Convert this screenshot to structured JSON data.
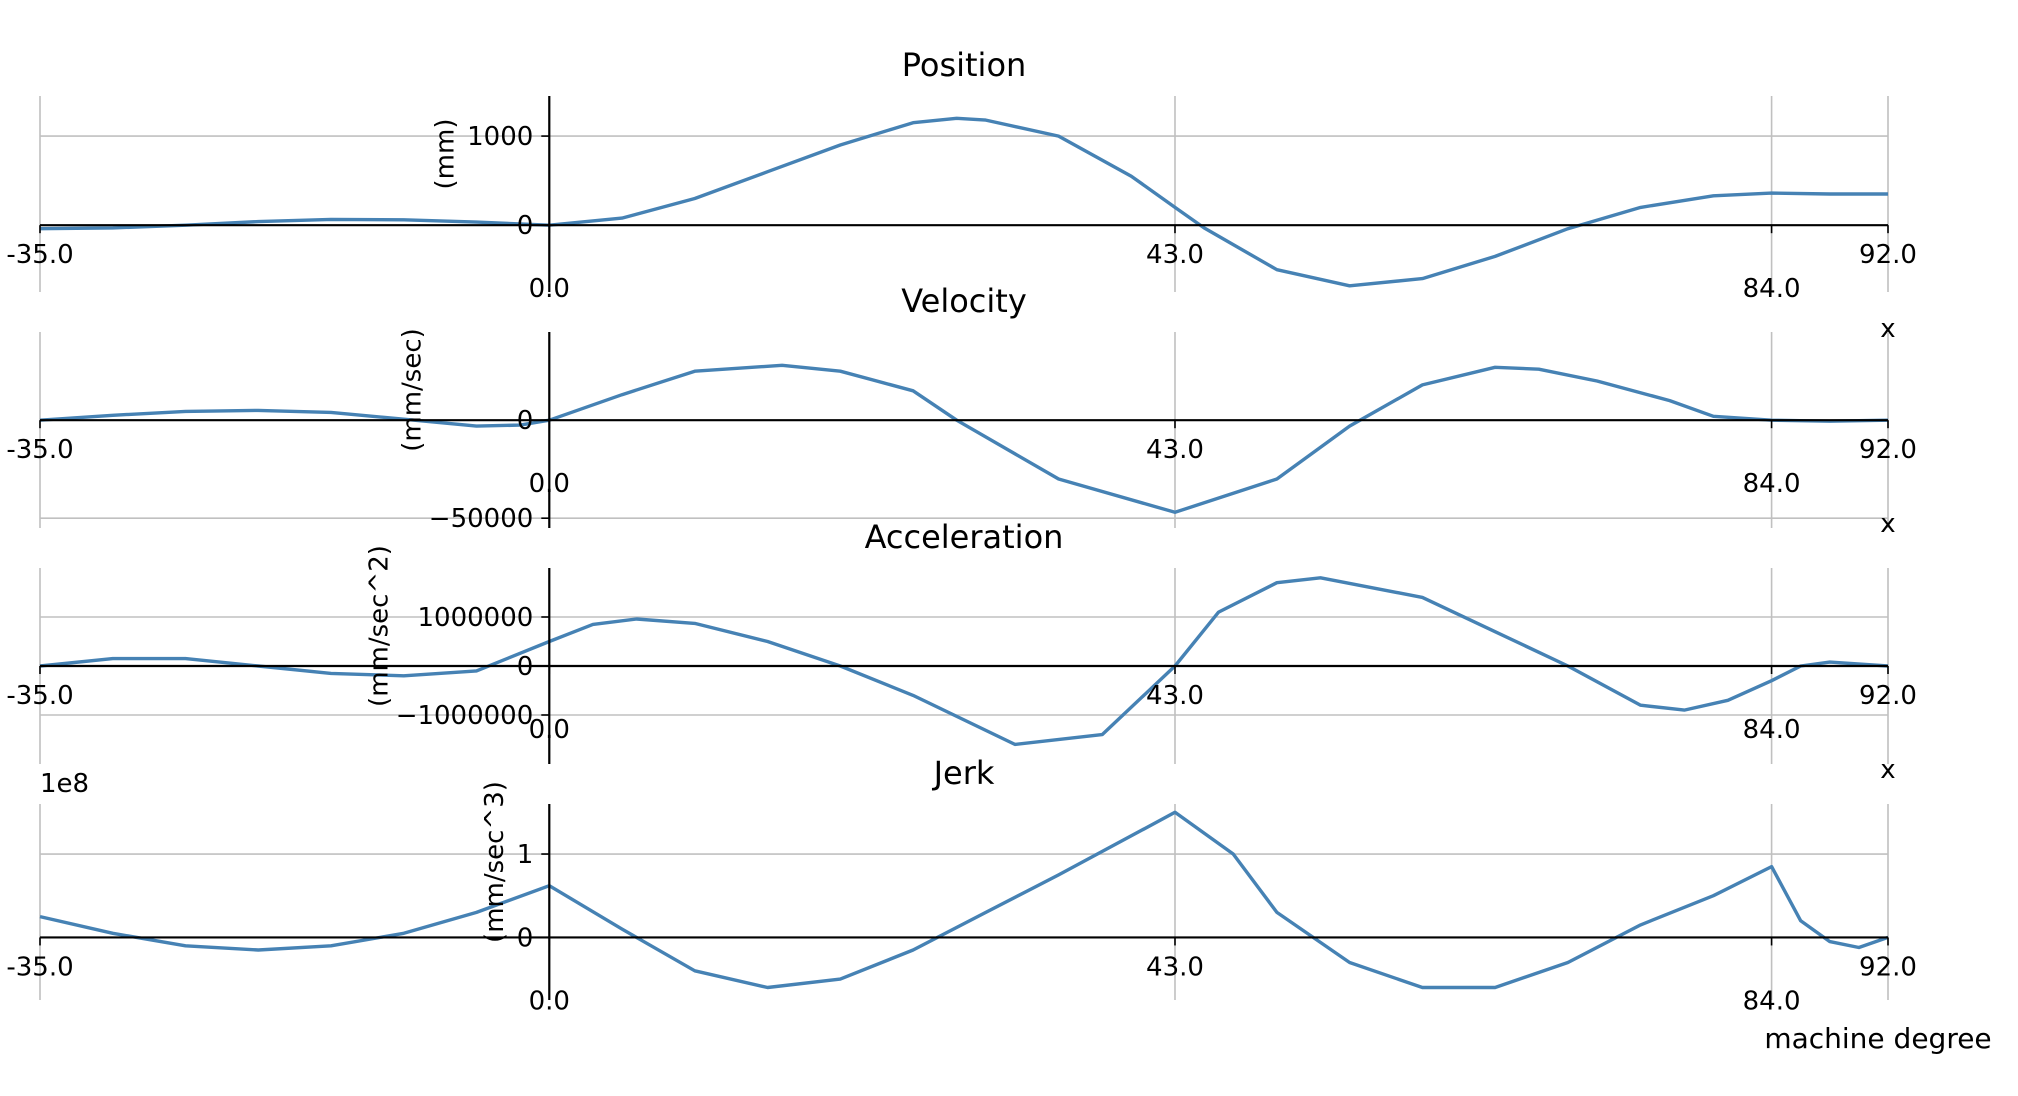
{
  "figure": {
    "xlabel": "machine degree",
    "axis_letter": "x"
  },
  "chart_data": [
    {
      "type": "line",
      "title": "Position",
      "ylabel": "(mm)",
      "xlim": [
        -35,
        92
      ],
      "ylim": [
        -750,
        1450
      ],
      "yticks": [
        0,
        1000
      ],
      "ytick_labels": [
        "0",
        "1000"
      ],
      "xticks_top": [
        -35,
        43,
        92
      ],
      "xticks_top_labels": [
        "-35.0",
        "43.0",
        "92.0"
      ],
      "xticks_bottom": [
        0,
        84
      ],
      "xticks_bottom_labels": [
        "0.0",
        "84.0"
      ],
      "show_x_letter": true,
      "multiplier": "",
      "grid": true,
      "color": "#4682b4",
      "series": [
        {
          "x": [
            -35,
            -30,
            -25,
            -20,
            -15,
            -10,
            -5,
            0,
            5,
            10,
            15,
            20,
            25,
            28,
            30,
            35,
            40,
            43,
            45,
            50,
            55,
            60,
            65,
            70,
            75,
            80,
            84,
            88,
            92
          ],
          "y": [
            -40,
            -30,
            0,
            40,
            65,
            60,
            35,
            0,
            80,
            300,
            600,
            900,
            1150,
            1200,
            1180,
            1000,
            550,
            200,
            -30,
            -500,
            -680,
            -600,
            -350,
            -40,
            200,
            330,
            360,
            350,
            350
          ]
        }
      ]
    },
    {
      "type": "line",
      "title": "Velocity",
      "ylabel": "(mm/sec)",
      "xlim": [
        -35,
        92
      ],
      "ylim": [
        -55000,
        45000
      ],
      "yticks": [
        -50000,
        0
      ],
      "ytick_labels": [
        "−50000",
        "0"
      ],
      "xticks_top": [
        -35,
        43,
        92
      ],
      "xticks_top_labels": [
        "-35.0",
        "43.0",
        "92.0"
      ],
      "xticks_bottom": [
        0,
        84
      ],
      "xticks_bottom_labels": [
        "0.0",
        "84.0"
      ],
      "show_x_letter": true,
      "multiplier": "",
      "grid": true,
      "color": "#4682b4",
      "series": [
        {
          "x": [
            -35,
            -30,
            -25,
            -20,
            -15,
            -10,
            -5,
            -2,
            0,
            5,
            10,
            16,
            20,
            25,
            28,
            35,
            43,
            50,
            55,
            60,
            65,
            68,
            72,
            77,
            80,
            84,
            88,
            92
          ],
          "y": [
            0,
            2500,
            4500,
            5000,
            4000,
            500,
            -3000,
            -2500,
            0,
            13000,
            25000,
            28000,
            25000,
            15000,
            0,
            -30000,
            -47000,
            -30000,
            -3000,
            18000,
            27000,
            26000,
            20000,
            10000,
            2000,
            0,
            -500,
            0
          ]
        }
      ]
    },
    {
      "type": "line",
      "title": "Acceleration",
      "ylabel": "(mm/sec^2)",
      "xlim": [
        -35,
        92
      ],
      "ylim": [
        -2000000,
        2000000
      ],
      "yticks": [
        -1000000,
        0,
        1000000
      ],
      "ytick_labels": [
        "−1000000",
        "0",
        "1000000"
      ],
      "xticks_top": [
        -35,
        43,
        92
      ],
      "xticks_top_labels": [
        "-35.0",
        "43.0",
        "92.0"
      ],
      "xticks_bottom": [
        0,
        84
      ],
      "xticks_bottom_labels": [
        "0.0",
        "84.0"
      ],
      "show_x_letter": true,
      "multiplier": "",
      "grid": true,
      "color": "#4682b4",
      "series": [
        {
          "x": [
            -35,
            -30,
            -25,
            -20,
            -15,
            -10,
            -5,
            0,
            3,
            6,
            10,
            15,
            20,
            25,
            32,
            38,
            43,
            46,
            50,
            53,
            60,
            65,
            70,
            75,
            78,
            81,
            84,
            86,
            88,
            92
          ],
          "y": [
            0,
            150000,
            150000,
            0,
            -150000,
            -200000,
            -100000,
            500000,
            850000,
            960000,
            870000,
            500000,
            0,
            -600000,
            -1600000,
            -1400000,
            0,
            1100000,
            1700000,
            1800000,
            1400000,
            700000,
            0,
            -800000,
            -900000,
            -700000,
            -300000,
            0,
            80000,
            0
          ]
        }
      ]
    },
    {
      "type": "line",
      "title": "Jerk",
      "ylabel": "(mm/sec^3)",
      "xlim": [
        -35,
        92
      ],
      "ylim": [
        -0.75,
        1.6
      ],
      "yticks": [
        0,
        1
      ],
      "ytick_labels": [
        "0",
        "1"
      ],
      "xticks_top": [
        -35,
        43,
        92
      ],
      "xticks_top_labels": [
        "-35.0",
        "43.0",
        "92.0"
      ],
      "xticks_bottom": [
        0,
        84
      ],
      "xticks_bottom_labels": [
        "0.0",
        "84.0"
      ],
      "show_x_letter": false,
      "multiplier": "1e8",
      "grid": true,
      "color": "#4682b4",
      "series": [
        {
          "x": [
            -35,
            -30,
            -25,
            -20,
            -15,
            -10,
            -5,
            0,
            5,
            10,
            15,
            20,
            25,
            30,
            35,
            43,
            47,
            50,
            55,
            60,
            65,
            70,
            75,
            80,
            84,
            86,
            88,
            90,
            92
          ],
          "y": [
            0.25,
            0.05,
            -0.1,
            -0.15,
            -0.1,
            0.05,
            0.3,
            0.62,
            0.1,
            -0.4,
            -0.6,
            -0.5,
            -0.15,
            0.3,
            0.75,
            1.5,
            1.0,
            0.3,
            -0.3,
            -0.6,
            -0.6,
            -0.3,
            0.15,
            0.5,
            0.85,
            0.2,
            -0.05,
            -0.12,
            0
          ]
        }
      ]
    }
  ]
}
